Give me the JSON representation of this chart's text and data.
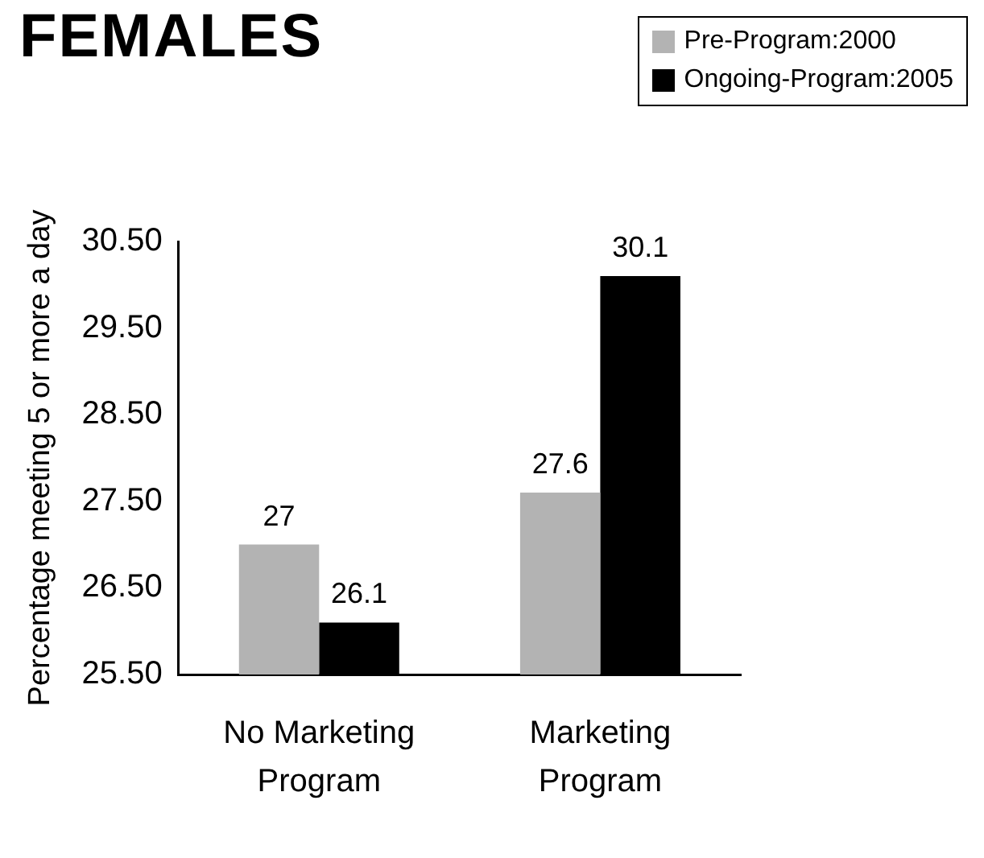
{
  "chart_data": {
    "type": "bar",
    "title": "FEMALES",
    "ylabel": "Percentage meeting 5 or more a day",
    "categories": [
      "No Marketing Program",
      "Marketing Program"
    ],
    "series": [
      {
        "name": "Pre-Program:2000",
        "color": "#b3b3b3",
        "values": [
          27,
          27.6
        ]
      },
      {
        "name": "Ongoing-Program:2005",
        "color": "#000000",
        "values": [
          26.1,
          30.1
        ]
      }
    ],
    "ylim": [
      25.5,
      30.5
    ],
    "yticks": [
      {
        "value": 25.5,
        "label": "25.50"
      },
      {
        "value": 26.5,
        "label": "26.50"
      },
      {
        "value": 27.5,
        "label": "27.50"
      },
      {
        "value": 28.5,
        "label": "28.50"
      },
      {
        "value": 29.5,
        "label": "29.50"
      },
      {
        "value": 30.5,
        "label": "30.50"
      }
    ],
    "grid": false,
    "legend": "top right",
    "data_labels": true
  }
}
